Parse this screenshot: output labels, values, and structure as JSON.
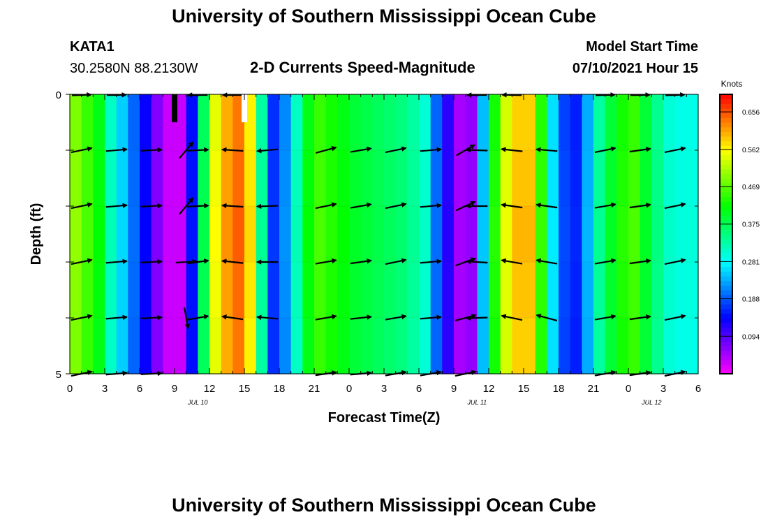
{
  "header": {
    "title_top": "University of Southern Mississippi Ocean Cube",
    "station_id": "KATA1",
    "coordinates": "30.2580N  88.2130W",
    "subtitle": "2-D Currents Speed-Magnitude",
    "model_start_label": "Model Start Time",
    "model_start_value": "07/10/2021 Hour 15",
    "title_bottom": "University of Southern Mississippi Ocean Cube"
  },
  "chart_data": {
    "type": "heatmap",
    "title": "2-D Currents Speed-Magnitude",
    "xlabel": "Forecast Time(Z)",
    "ylabel": "Depth (ft)",
    "x_range_hours": [
      0,
      54
    ],
    "ylim": [
      0,
      5
    ],
    "y_inverted": true,
    "x_tick_labels": [
      "0",
      "3",
      "6",
      "9",
      "12",
      "15",
      "18",
      "21",
      "0",
      "3",
      "6",
      "9",
      "12",
      "15",
      "18",
      "21",
      "0",
      "3",
      "6"
    ],
    "y_tick_labels": [
      "0",
      "5"
    ],
    "date_labels": [
      {
        "text": "JUL 10",
        "hour": 11
      },
      {
        "text": "JUL 11",
        "hour": 35
      },
      {
        "text": "JUL 12",
        "hour": 50
      }
    ],
    "colorbar": {
      "unit_label": "Knots",
      "range": [
        0,
        0.7
      ],
      "tick_values": [
        0.094,
        0.188,
        0.281,
        0.375,
        0.469,
        0.562,
        0.656
      ],
      "tick_labels": [
        "0.094",
        "0.188",
        "0.281",
        "0.375",
        "0.469",
        "0.562",
        "0.656"
      ]
    },
    "speed_profile": [
      {
        "hour": 0.5,
        "speed": 0.5
      },
      {
        "hour": 1.5,
        "speed": 0.46
      },
      {
        "hour": 2.5,
        "speed": 0.42
      },
      {
        "hour": 3.5,
        "speed": 0.32
      },
      {
        "hour": 4.5,
        "speed": 0.26
      },
      {
        "hour": 5.5,
        "speed": 0.2
      },
      {
        "hour": 6.5,
        "speed": 0.14
      },
      {
        "hour": 7.5,
        "speed": 0.07
      },
      {
        "hour": 8.5,
        "speed": 0.03
      },
      {
        "hour": 9.5,
        "speed": 0.03
      },
      {
        "hour": 10.5,
        "speed": 0.15
      },
      {
        "hour": 11.5,
        "speed": 0.38
      },
      {
        "hour": 12.5,
        "speed": 0.56
      },
      {
        "hour": 13.5,
        "speed": 0.62
      },
      {
        "hour": 14.5,
        "speed": 0.65
      },
      {
        "hour": 15.5,
        "speed": 0.58
      },
      {
        "hour": 16.5,
        "speed": 0.34
      },
      {
        "hour": 17.5,
        "speed": 0.17
      },
      {
        "hour": 18.5,
        "speed": 0.22
      },
      {
        "hour": 19.5,
        "speed": 0.32
      },
      {
        "hour": 20.5,
        "speed": 0.42
      },
      {
        "hour": 21.5,
        "speed": 0.46
      },
      {
        "hour": 22.5,
        "speed": 0.44
      },
      {
        "hour": 23.5,
        "speed": 0.42
      },
      {
        "hour": 24.5,
        "speed": 0.4
      },
      {
        "hour": 25.5,
        "speed": 0.39
      },
      {
        "hour": 26.5,
        "speed": 0.38
      },
      {
        "hour": 27.5,
        "speed": 0.37
      },
      {
        "hour": 28.5,
        "speed": 0.36
      },
      {
        "hour": 29.5,
        "speed": 0.34
      },
      {
        "hour": 30.5,
        "speed": 0.31
      },
      {
        "hour": 31.5,
        "speed": 0.2
      },
      {
        "hour": 32.5,
        "speed": 0.12
      },
      {
        "hour": 33.5,
        "speed": 0.05
      },
      {
        "hour": 34.5,
        "speed": 0.06
      },
      {
        "hour": 35.5,
        "speed": 0.25
      },
      {
        "hour": 36.5,
        "speed": 0.44
      },
      {
        "hour": 37.5,
        "speed": 0.55
      },
      {
        "hour": 38.5,
        "speed": 0.6
      },
      {
        "hour": 39.5,
        "speed": 0.6
      },
      {
        "hour": 40.5,
        "speed": 0.45
      },
      {
        "hour": 41.5,
        "speed": 0.27
      },
      {
        "hour": 42.5,
        "speed": 0.18
      },
      {
        "hour": 43.5,
        "speed": 0.16
      },
      {
        "hour": 44.5,
        "speed": 0.24
      },
      {
        "hour": 45.5,
        "speed": 0.34
      },
      {
        "hour": 46.5,
        "speed": 0.4
      },
      {
        "hour": 47.5,
        "speed": 0.44
      },
      {
        "hour": 48.5,
        "speed": 0.46
      },
      {
        "hour": 49.5,
        "speed": 0.4
      },
      {
        "hour": 50.5,
        "speed": 0.35
      },
      {
        "hour": 51.5,
        "speed": 0.31
      },
      {
        "hour": 52.5,
        "speed": 0.3
      },
      {
        "hour": 53.5,
        "speed": 0.3
      }
    ],
    "vector_depths": [
      1,
      2,
      3,
      4,
      5
    ],
    "vectors": [
      {
        "hour": 1,
        "direction_deg": 12,
        "profile": [
          12,
          12,
          12,
          12,
          12
        ]
      },
      {
        "hour": 4,
        "direction_deg": 5,
        "profile": [
          5,
          5,
          5,
          5,
          5
        ]
      },
      {
        "hour": 7,
        "direction_deg": 3,
        "profile": [
          3,
          3,
          3,
          3,
          3
        ]
      },
      {
        "hour": 10,
        "direction_deg": 50,
        "profile": [
          50,
          50,
          3,
          -80,
          null
        ]
      },
      {
        "hour": 11,
        "direction_deg": 175,
        "profile": [
          3,
          3,
          8,
          10,
          null
        ]
      },
      {
        "hour": 14,
        "direction_deg": 178,
        "profile": [
          176,
          176,
          174,
          172,
          null
        ]
      },
      {
        "hour": 17,
        "direction_deg": 180,
        "profile": [
          185,
          182,
          180,
          175,
          null
        ]
      },
      {
        "hour": 22,
        "direction_deg": 15,
        "profile": [
          15,
          12,
          10,
          10,
          8
        ]
      },
      {
        "hour": 25,
        "direction_deg": 10,
        "profile": [
          10,
          10,
          8,
          6,
          5
        ]
      },
      {
        "hour": 28,
        "direction_deg": 12,
        "profile": [
          12,
          12,
          12,
          10,
          10
        ]
      },
      {
        "hour": 31,
        "direction_deg": 5,
        "profile": [
          5,
          5,
          5,
          5,
          10
        ]
      },
      {
        "hour": 34,
        "direction_deg": 25,
        "profile": [
          30,
          25,
          20,
          15,
          12
        ]
      },
      {
        "hour": 35,
        "direction_deg": 180,
        "profile": [
          178,
          180,
          176,
          182,
          null
        ]
      },
      {
        "hour": 38,
        "direction_deg": 176,
        "profile": [
          174,
          172,
          170,
          168,
          null
        ]
      },
      {
        "hour": 41,
        "direction_deg": 175,
        "profile": [
          175,
          172,
          170,
          165,
          null
        ]
      },
      {
        "hour": 46,
        "direction_deg": 12,
        "profile": [
          12,
          10,
          10,
          10,
          10
        ]
      },
      {
        "hour": 49,
        "direction_deg": 8,
        "profile": [
          8,
          8,
          8,
          8,
          8
        ]
      },
      {
        "hour": 52,
        "direction_deg": 12,
        "profile": [
          12,
          12,
          12,
          12,
          12
        ]
      }
    ],
    "surface_vectors": [
      {
        "hour": 1,
        "direction_deg": 15
      },
      {
        "hour": 4,
        "direction_deg": 10
      },
      {
        "hour": 11,
        "direction_deg": 180
      },
      {
        "hour": 14,
        "direction_deg": 180
      },
      {
        "hour": 35,
        "direction_deg": 180
      },
      {
        "hour": 38,
        "direction_deg": 170
      },
      {
        "hour": 46,
        "direction_deg": 12
      },
      {
        "hour": 49,
        "direction_deg": 10
      },
      {
        "hour": 52,
        "direction_deg": 15
      }
    ],
    "markers": [
      {
        "hour": 9,
        "color": "#000000"
      },
      {
        "hour": 15,
        "color": "#ffffff"
      }
    ]
  }
}
